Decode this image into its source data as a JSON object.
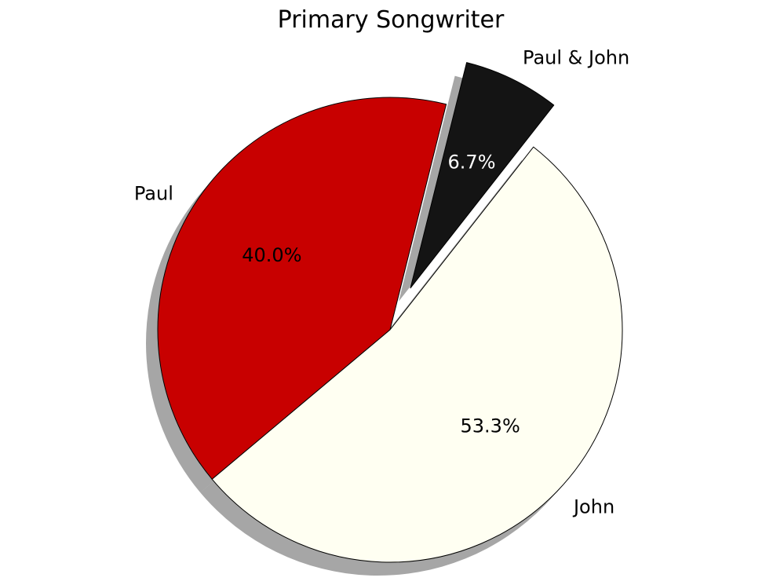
{
  "chart_data": {
    "type": "pie",
    "title": "Primary Songwriter",
    "slices": [
      {
        "label": "Paul",
        "value": 40.0,
        "pct_label": "40.0%",
        "color": "#c80000",
        "explode": false
      },
      {
        "label": "John",
        "value": 53.3,
        "pct_label": "53.3%",
        "color": "#fffff2",
        "explode": false
      },
      {
        "label": "Paul & John",
        "value": 6.7,
        "pct_label": "6.7%",
        "color": "#141414",
        "explode": true
      }
    ],
    "shadow": true
  }
}
